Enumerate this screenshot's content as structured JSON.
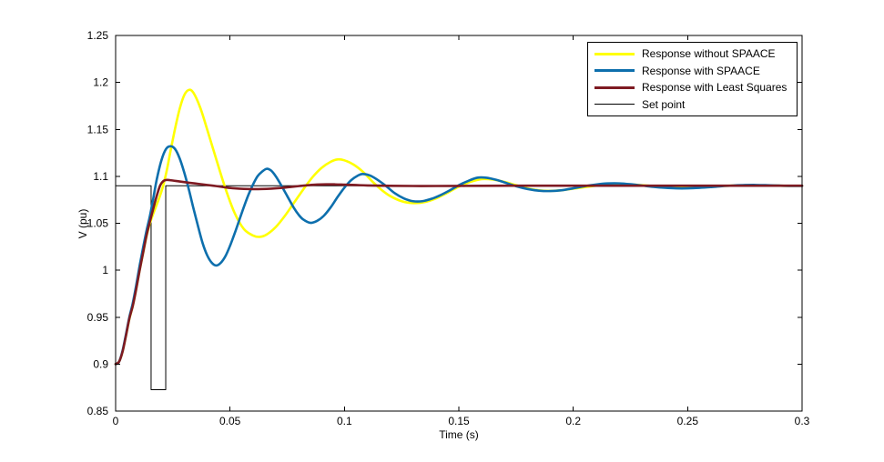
{
  "figure": {
    "background": "#ffffff"
  },
  "chart_data": {
    "type": "line",
    "title": "",
    "xlabel": "Time (s)",
    "ylabel": "V (pu)",
    "xlim": [
      0,
      0.3
    ],
    "ylim": [
      0.85,
      1.25
    ],
    "xticks": [
      0,
      0.05,
      0.1,
      0.15,
      0.2,
      0.25,
      0.3
    ],
    "xtick_labels": [
      "0",
      "0.05",
      "0.1",
      "0.15",
      "0.2",
      "0.25",
      "0.3"
    ],
    "yticks": [
      0.85,
      0.9,
      0.95,
      1.0,
      1.05,
      1.1,
      1.15,
      1.2,
      1.25
    ],
    "ytick_labels": [
      "0.85",
      "0.9",
      "0.95",
      "1",
      "1.05",
      "1.1",
      "1.15",
      "1.2",
      "1.25"
    ],
    "grid": false,
    "legend_position": "top-right",
    "set_point_value": 1.09,
    "disturbance_pulse": {
      "t_start": 0.0155,
      "t_end": 0.0219,
      "v_low": 0.8727
    },
    "series": [
      {
        "name": "Set point",
        "color": "#000000",
        "width": 1,
        "smooth": false,
        "points": [
          [
            0,
            1.09
          ],
          [
            0.0155,
            1.09
          ],
          [
            0.0155,
            0.8727
          ],
          [
            0.0219,
            0.8727
          ],
          [
            0.0219,
            1.09
          ],
          [
            0.3,
            1.09
          ]
        ]
      },
      {
        "name": "Response without SPAACE",
        "color": "#FFFF00",
        "width": 2.6,
        "smooth": true,
        "points": [
          [
            0,
            0.9
          ],
          [
            0.0015,
            0.9025
          ],
          [
            0.003,
            0.913
          ],
          [
            0.0045,
            0.93
          ],
          [
            0.006,
            0.948
          ],
          [
            0.0075,
            0.962
          ],
          [
            0.009,
            0.98
          ],
          [
            0.0105,
            1.0
          ],
          [
            0.012,
            1.018
          ],
          [
            0.0135,
            1.036
          ],
          [
            0.015,
            1.05
          ],
          [
            0.0165,
            1.0605
          ],
          [
            0.018,
            1.07
          ],
          [
            0.0195,
            1.08
          ],
          [
            0.021,
            1.092
          ],
          [
            0.0225,
            1.108
          ],
          [
            0.024,
            1.127
          ],
          [
            0.026,
            1.151
          ],
          [
            0.028,
            1.172
          ],
          [
            0.03,
            1.1865
          ],
          [
            0.032,
            1.192
          ],
          [
            0.034,
            1.189
          ],
          [
            0.037,
            1.173
          ],
          [
            0.04,
            1.15
          ],
          [
            0.044,
            1.118
          ],
          [
            0.048,
            1.087
          ],
          [
            0.052,
            1.061
          ],
          [
            0.056,
            1.044
          ],
          [
            0.06,
            1.037
          ],
          [
            0.063,
            1.0355
          ],
          [
            0.066,
            1.038
          ],
          [
            0.07,
            1.046
          ],
          [
            0.074,
            1.058
          ],
          [
            0.078,
            1.072
          ],
          [
            0.082,
            1.086
          ],
          [
            0.086,
            1.099
          ],
          [
            0.09,
            1.109
          ],
          [
            0.094,
            1.1155
          ],
          [
            0.097,
            1.118
          ],
          [
            0.1,
            1.117
          ],
          [
            0.104,
            1.1125
          ],
          [
            0.108,
            1.105
          ],
          [
            0.112,
            1.095
          ],
          [
            0.116,
            1.086
          ],
          [
            0.12,
            1.079
          ],
          [
            0.125,
            1.0735
          ],
          [
            0.13,
            1.0715
          ],
          [
            0.135,
            1.0725
          ],
          [
            0.14,
            1.0765
          ],
          [
            0.145,
            1.0825
          ],
          [
            0.15,
            1.089
          ],
          [
            0.155,
            1.094
          ],
          [
            0.16,
            1.097
          ],
          [
            0.165,
            1.0965
          ],
          [
            0.17,
            1.094
          ],
          [
            0.175,
            1.0905
          ],
          [
            0.18,
            1.0872
          ],
          [
            0.185,
            1.0851
          ],
          [
            0.19,
            1.0845
          ],
          [
            0.195,
            1.0852
          ],
          [
            0.2,
            1.0868
          ],
          [
            0.205,
            1.0885
          ],
          [
            0.21,
            1.09
          ],
          [
            0.215,
            1.0912
          ],
          [
            0.22,
            1.0916
          ],
          [
            0.225,
            1.0913
          ],
          [
            0.23,
            1.0905
          ],
          [
            0.235,
            1.0896
          ],
          [
            0.24,
            1.0889
          ],
          [
            0.245,
            1.0884
          ],
          [
            0.25,
            1.0883
          ],
          [
            0.255,
            1.0886
          ],
          [
            0.26,
            1.0891
          ],
          [
            0.265,
            1.0897
          ],
          [
            0.27,
            1.0901
          ],
          [
            0.275,
            1.0904
          ],
          [
            0.28,
            1.0904
          ],
          [
            0.285,
            1.0902
          ],
          [
            0.29,
            1.09
          ],
          [
            0.295,
            1.0899
          ],
          [
            0.3,
            1.0899
          ]
        ]
      },
      {
        "name": "Response with SPAACE",
        "color": "#0D6FAD",
        "width": 2.6,
        "smooth": true,
        "points": [
          [
            0,
            0.9
          ],
          [
            0.0015,
            0.9025
          ],
          [
            0.003,
            0.914
          ],
          [
            0.0045,
            0.9315
          ],
          [
            0.006,
            0.95
          ],
          [
            0.0075,
            0.965
          ],
          [
            0.009,
            0.984
          ],
          [
            0.0105,
            1.005
          ],
          [
            0.012,
            1.024
          ],
          [
            0.0135,
            1.042
          ],
          [
            0.015,
            1.058
          ],
          [
            0.0165,
            1.077
          ],
          [
            0.018,
            1.097
          ],
          [
            0.02,
            1.117
          ],
          [
            0.022,
            1.129
          ],
          [
            0.024,
            1.132
          ],
          [
            0.026,
            1.129
          ],
          [
            0.028,
            1.119
          ],
          [
            0.03,
            1.104
          ],
          [
            0.032,
            1.086
          ],
          [
            0.034,
            1.066
          ],
          [
            0.036,
            1.047
          ],
          [
            0.038,
            1.029
          ],
          [
            0.04,
            1.016
          ],
          [
            0.042,
            1.008
          ],
          [
            0.044,
            1.005
          ],
          [
            0.046,
            1.008
          ],
          [
            0.048,
            1.015
          ],
          [
            0.05,
            1.026
          ],
          [
            0.052,
            1.039
          ],
          [
            0.054,
            1.053
          ],
          [
            0.056,
            1.067
          ],
          [
            0.058,
            1.08
          ],
          [
            0.06,
            1.091
          ],
          [
            0.062,
            1.1
          ],
          [
            0.064,
            1.105
          ],
          [
            0.066,
            1.108
          ],
          [
            0.068,
            1.106
          ],
          [
            0.07,
            1.1
          ],
          [
            0.072,
            1.092
          ],
          [
            0.075,
            1.079
          ],
          [
            0.078,
            1.066
          ],
          [
            0.08,
            1.059
          ],
          [
            0.082,
            1.054
          ],
          [
            0.085,
            1.0505
          ],
          [
            0.088,
            1.0525
          ],
          [
            0.091,
            1.058
          ],
          [
            0.094,
            1.067
          ],
          [
            0.097,
            1.078
          ],
          [
            0.1,
            1.088
          ],
          [
            0.103,
            1.096
          ],
          [
            0.106,
            1.101
          ],
          [
            0.108,
            1.1025
          ],
          [
            0.111,
            1.101
          ],
          [
            0.114,
            1.097
          ],
          [
            0.118,
            1.09
          ],
          [
            0.122,
            1.082
          ],
          [
            0.126,
            1.0765
          ],
          [
            0.13,
            1.0735
          ],
          [
            0.134,
            1.0735
          ],
          [
            0.138,
            1.076
          ],
          [
            0.142,
            1.08
          ],
          [
            0.146,
            1.085
          ],
          [
            0.15,
            1.0905
          ],
          [
            0.154,
            1.095
          ],
          [
            0.158,
            1.0985
          ],
          [
            0.162,
            1.0985
          ],
          [
            0.166,
            1.0965
          ],
          [
            0.17,
            1.0935
          ],
          [
            0.175,
            1.0895
          ],
          [
            0.18,
            1.0865
          ],
          [
            0.185,
            1.0847
          ],
          [
            0.19,
            1.0843
          ],
          [
            0.195,
            1.0852
          ],
          [
            0.2,
            1.0872
          ],
          [
            0.205,
            1.0895
          ],
          [
            0.21,
            1.0913
          ],
          [
            0.215,
            1.0924
          ],
          [
            0.22,
            1.0925
          ],
          [
            0.225,
            1.0916
          ],
          [
            0.23,
            1.0902
          ],
          [
            0.235,
            1.0888
          ],
          [
            0.24,
            1.0878
          ],
          [
            0.245,
            1.0872
          ],
          [
            0.25,
            1.0872
          ],
          [
            0.255,
            1.0877
          ],
          [
            0.26,
            1.0885
          ],
          [
            0.265,
            1.0895
          ],
          [
            0.27,
            1.0902
          ],
          [
            0.275,
            1.0907
          ],
          [
            0.28,
            1.0908
          ],
          [
            0.285,
            1.0905
          ],
          [
            0.29,
            1.0901
          ],
          [
            0.295,
            1.0898
          ],
          [
            0.3,
            1.0898
          ]
        ]
      },
      {
        "name": "Response with Least Squares",
        "color": "#7E1A22",
        "width": 2.6,
        "smooth": true,
        "points": [
          [
            0,
            0.9
          ],
          [
            0.0015,
            0.9025
          ],
          [
            0.003,
            0.913
          ],
          [
            0.0045,
            0.93
          ],
          [
            0.006,
            0.9485
          ],
          [
            0.0075,
            0.962
          ],
          [
            0.009,
            0.98
          ],
          [
            0.0105,
            1.0
          ],
          [
            0.012,
            1.0185
          ],
          [
            0.0135,
            1.037
          ],
          [
            0.015,
            1.052
          ],
          [
            0.0165,
            1.066
          ],
          [
            0.018,
            1.0795
          ],
          [
            0.0195,
            1.0905
          ],
          [
            0.021,
            1.0952
          ],
          [
            0.0225,
            1.0962
          ],
          [
            0.025,
            1.0955
          ],
          [
            0.028,
            1.0945
          ],
          [
            0.032,
            1.0932
          ],
          [
            0.036,
            1.092
          ],
          [
            0.04,
            1.0908
          ],
          [
            0.044,
            1.0896
          ],
          [
            0.048,
            1.0882
          ],
          [
            0.052,
            1.0872
          ],
          [
            0.056,
            1.0866
          ],
          [
            0.06,
            1.0864
          ],
          [
            0.064,
            1.0865
          ],
          [
            0.068,
            1.0869
          ],
          [
            0.072,
            1.0876
          ],
          [
            0.076,
            1.0886
          ],
          [
            0.08,
            1.0896
          ],
          [
            0.084,
            1.0905
          ],
          [
            0.088,
            1.0912
          ],
          [
            0.092,
            1.0915
          ],
          [
            0.096,
            1.0914
          ],
          [
            0.1,
            1.0911
          ],
          [
            0.105,
            1.0907
          ],
          [
            0.11,
            1.0903
          ],
          [
            0.12,
            1.0899
          ],
          [
            0.13,
            1.0897
          ],
          [
            0.14,
            1.0897
          ],
          [
            0.15,
            1.0898
          ],
          [
            0.16,
            1.0899
          ],
          [
            0.18,
            1.09
          ],
          [
            0.2,
            1.09
          ],
          [
            0.22,
            1.09
          ],
          [
            0.24,
            1.09
          ],
          [
            0.26,
            1.09
          ],
          [
            0.28,
            1.09
          ],
          [
            0.3,
            1.09
          ]
        ]
      }
    ]
  },
  "legend": {
    "items": [
      {
        "label": "Response without SPAACE",
        "color": "#FFFF00",
        "thick": true
      },
      {
        "label": "Response with SPAACE",
        "color": "#0D6FAD",
        "thick": true
      },
      {
        "label": "Response with Least Squares",
        "color": "#7E1A22",
        "thick": true
      },
      {
        "label": "Set point",
        "color": "#000000",
        "thick": false
      }
    ]
  }
}
